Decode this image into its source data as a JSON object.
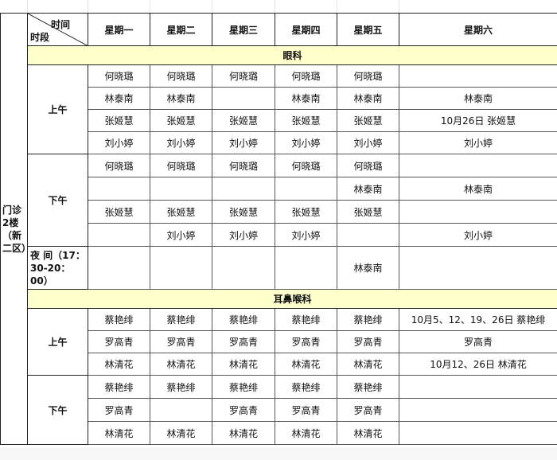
{
  "header": {
    "time_label": "时间",
    "period_label": "时段",
    "days": [
      "星期一",
      "星期二",
      "星期三",
      "星期四",
      "星期五",
      "星期六"
    ]
  },
  "location": "门诊2楼（新二区）",
  "departments": [
    {
      "name": "眼科",
      "slots": [
        {
          "label": "上午",
          "rows": [
            [
              "何晓璐",
              "何晓璐",
              "何晓璐",
              "何晓璐",
              "何晓璐",
              ""
            ],
            [
              "林泰南",
              "林泰南",
              "",
              "林泰南",
              "林泰南",
              "林泰南"
            ],
            [
              "张姬慧",
              "张姬慧",
              "张姬慧",
              "张姬慧",
              "张姬慧",
              "10月26日 张姬慧"
            ],
            [
              "刘小婷",
              "刘小婷",
              "刘小婷",
              "刘小婷",
              "刘小婷",
              "刘小婷"
            ]
          ]
        },
        {
          "label": "下午",
          "rows": [
            [
              "何晓璐",
              "何晓璐",
              "何晓璐",
              "何晓璐",
              "何晓璐",
              ""
            ],
            [
              "",
              "",
              "",
              "",
              "林泰南",
              "林泰南"
            ],
            [
              "张姬慧",
              "张姬慧",
              "张姬慧",
              "张姬慧",
              "张姬慧",
              ""
            ],
            [
              "",
              "刘小婷",
              "刘小婷",
              "刘小婷",
              "",
              "刘小婷"
            ]
          ]
        },
        {
          "label": "夜 间（17：30-20：00）",
          "rows": [
            [
              "",
              "",
              "",
              "",
              "林泰南",
              ""
            ]
          ]
        }
      ]
    },
    {
      "name": "耳鼻喉科",
      "slots": [
        {
          "label": "上午",
          "rows": [
            [
              "蔡艳绯",
              "蔡艳绯",
              "蔡艳绯",
              "蔡艳绯",
              "蔡艳绯",
              "10月5、12、19、26日 蔡艳绯"
            ],
            [
              "罗高青",
              "罗高青",
              "罗高青",
              "罗高青",
              "罗高青",
              "罗高青"
            ],
            [
              "林清花",
              "林清花",
              "林清花",
              "林清花",
              "林清花",
              "10月12、26日 林清花"
            ]
          ]
        },
        {
          "label": "下午",
          "rows": [
            [
              "蔡艳绯",
              "蔡艳绯",
              "蔡艳绯",
              "蔡艳绯",
              "蔡艳绯",
              ""
            ],
            [
              "罗高青",
              "",
              "罗高青",
              "罗高青",
              "罗高青",
              ""
            ],
            [
              "林清花",
              "林清花",
              "林清花",
              "林清花",
              "林清花",
              ""
            ]
          ]
        }
      ]
    }
  ]
}
